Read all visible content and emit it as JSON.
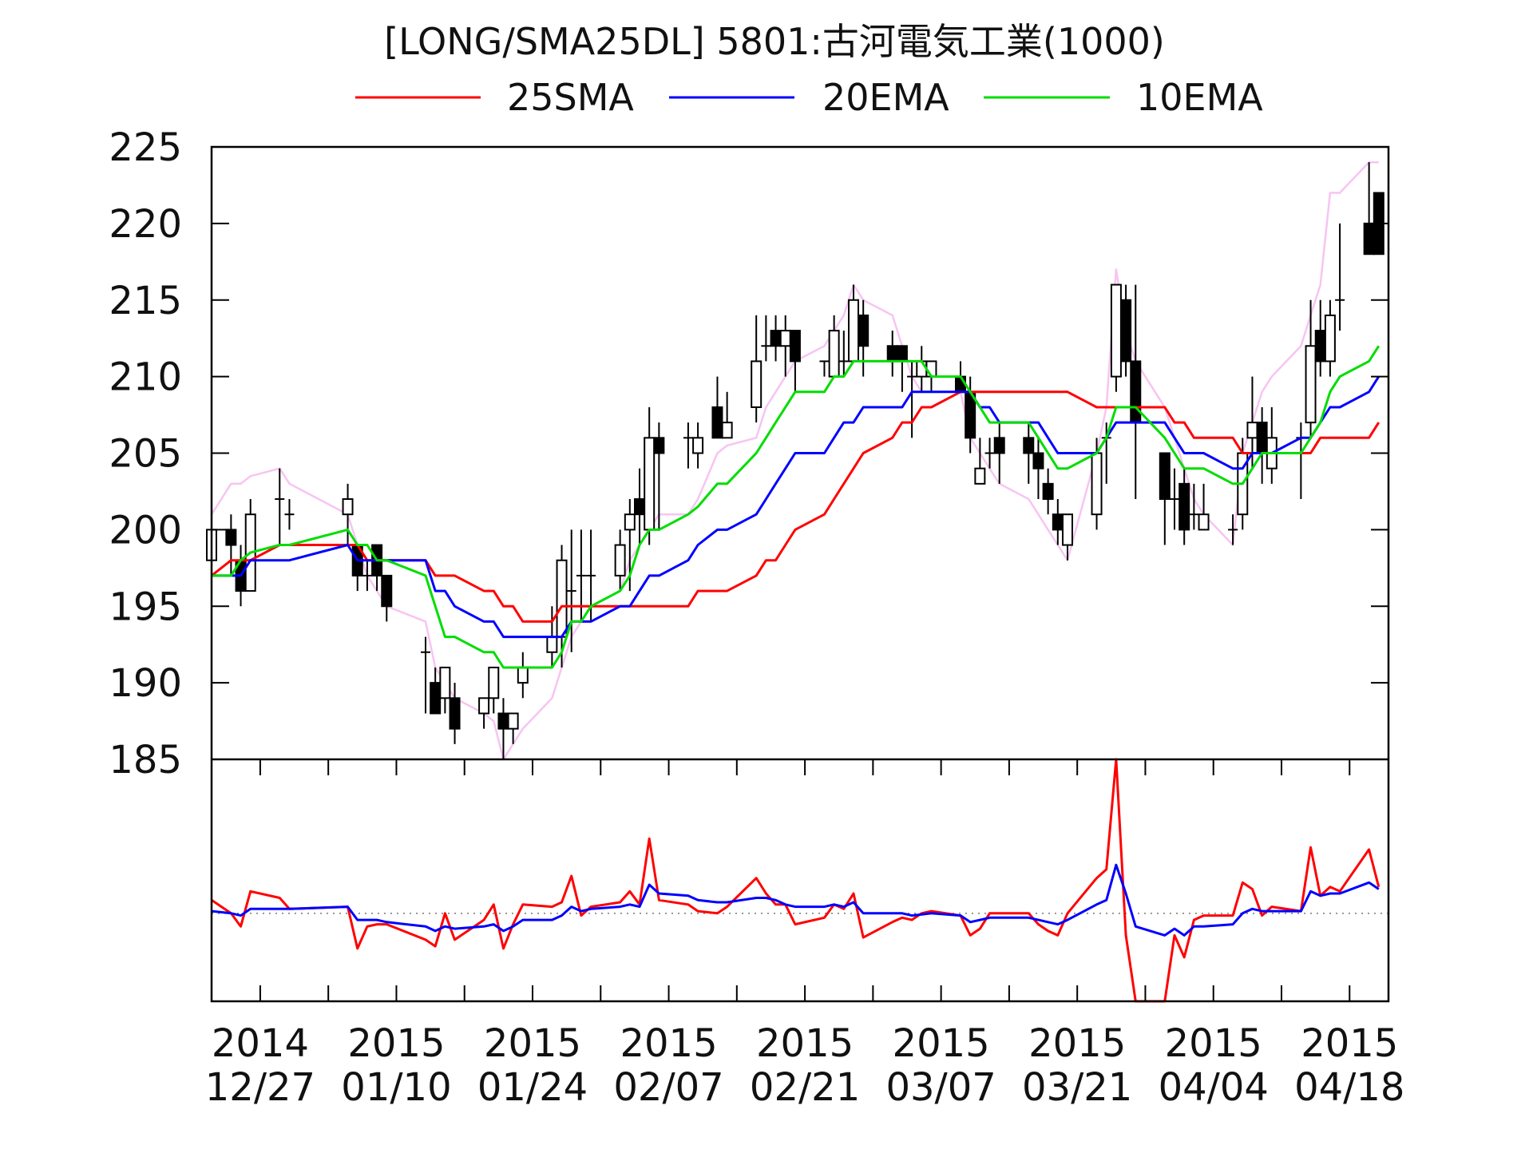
{
  "chart_data": [
    {
      "type": "candlestick",
      "title": "[LONG/SMA25DL] 5801:古河電気工業(1000)",
      "legend_placement": "top",
      "ylim": [
        185,
        225
      ],
      "yticks": [
        "185",
        "190",
        "195",
        "200",
        "205",
        "210",
        "215",
        "220",
        "225"
      ],
      "xlim": [
        "2014-12-22",
        "2015-04-22"
      ],
      "xticks": [
        {
          "date": "2014-12-27",
          "year": "2014",
          "md": "12/27"
        },
        {
          "date": "2015-01-10",
          "year": "2015",
          "md": "01/10"
        },
        {
          "date": "2015-01-24",
          "year": "2015",
          "md": "01/24"
        },
        {
          "date": "2015-02-07",
          "year": "2015",
          "md": "02/07"
        },
        {
          "date": "2015-02-21",
          "year": "2015",
          "md": "02/21"
        },
        {
          "date": "2015-03-07",
          "year": "2015",
          "md": "03/07"
        },
        {
          "date": "2015-03-21",
          "year": "2015",
          "md": "03/21"
        },
        {
          "date": "2015-04-04",
          "year": "2015",
          "md": "04/04"
        },
        {
          "date": "2015-04-18",
          "year": "2015",
          "md": "04/18"
        }
      ],
      "dates": [
        "2014-12-22",
        "2014-12-24",
        "2014-12-25",
        "2014-12-26",
        "2014-12-29",
        "2014-12-30",
        "2015-01-05",
        "2015-01-06",
        "2015-01-07",
        "2015-01-08",
        "2015-01-09",
        "2015-01-13",
        "2015-01-14",
        "2015-01-15",
        "2015-01-16",
        "2015-01-19",
        "2015-01-20",
        "2015-01-21",
        "2015-01-22",
        "2015-01-23",
        "2015-01-26",
        "2015-01-27",
        "2015-01-28",
        "2015-01-29",
        "2015-01-30",
        "2015-02-02",
        "2015-02-03",
        "2015-02-04",
        "2015-02-05",
        "2015-02-06",
        "2015-02-09",
        "2015-02-10",
        "2015-02-12",
        "2015-02-13",
        "2015-02-16",
        "2015-02-17",
        "2015-02-18",
        "2015-02-19",
        "2015-02-20",
        "2015-02-23",
        "2015-02-24",
        "2015-02-25",
        "2015-02-26",
        "2015-02-27",
        "2015-03-02",
        "2015-03-03",
        "2015-03-04",
        "2015-03-05",
        "2015-03-06",
        "2015-03-09",
        "2015-03-10",
        "2015-03-11",
        "2015-03-12",
        "2015-03-13",
        "2015-03-16",
        "2015-03-17",
        "2015-03-18",
        "2015-03-19",
        "2015-03-20",
        "2015-03-23",
        "2015-03-24",
        "2015-03-25",
        "2015-03-26",
        "2015-03-27",
        "2015-03-30",
        "2015-03-31",
        "2015-04-01",
        "2015-04-02",
        "2015-04-03",
        "2015-04-06",
        "2015-04-07",
        "2015-04-08",
        "2015-04-09",
        "2015-04-10",
        "2015-04-13",
        "2015-04-14",
        "2015-04-15",
        "2015-04-16",
        "2015-04-17",
        "2015-04-20",
        "2015-04-21"
      ],
      "ohlc": [
        [
          198,
          200,
          198,
          200
        ],
        [
          200,
          201,
          197,
          199
        ],
        [
          198,
          199,
          195,
          196
        ],
        [
          196,
          202,
          196,
          201
        ],
        [
          202,
          204,
          199,
          202
        ],
        [
          201,
          202,
          200,
          201
        ],
        [
          201,
          203,
          199,
          202
        ],
        [
          199,
          199,
          196,
          197
        ],
        [
          197,
          198,
          196,
          197
        ],
        [
          199,
          199,
          196,
          197
        ],
        [
          197,
          197,
          194,
          195
        ],
        [
          192,
          193,
          188,
          192
        ],
        [
          190,
          191,
          188,
          188
        ],
        [
          189,
          191,
          188,
          191
        ],
        [
          189,
          190,
          186,
          187
        ],
        [
          188,
          189,
          187,
          189
        ],
        [
          189,
          191,
          188,
          191
        ],
        [
          188,
          189,
          185,
          187
        ],
        [
          187,
          188,
          186,
          188
        ],
        [
          190,
          192,
          189,
          191
        ],
        [
          192,
          195,
          191,
          193
        ],
        [
          193,
          199,
          191,
          198
        ],
        [
          196,
          200,
          192,
          196
        ],
        [
          197,
          200,
          194,
          197
        ],
        [
          197,
          200,
          194,
          197
        ],
        [
          197,
          200,
          196,
          199
        ],
        [
          200,
          202,
          196,
          201
        ],
        [
          202,
          204,
          199,
          201
        ],
        [
          200,
          208,
          199,
          206
        ],
        [
          206,
          207,
          200,
          205
        ],
        [
          206,
          207,
          204,
          206
        ],
        [
          205,
          207,
          204,
          206
        ],
        [
          208,
          210,
          206,
          206
        ],
        [
          206,
          209,
          206,
          207
        ],
        [
          208,
          214,
          207,
          211
        ],
        [
          212,
          214,
          211,
          212
        ],
        [
          213,
          214,
          211,
          212
        ],
        [
          212,
          214,
          210,
          213
        ],
        [
          213,
          213,
          209,
          211
        ],
        [
          211,
          211,
          210,
          211
        ],
        [
          210,
          214,
          210,
          213
        ],
        [
          211,
          213,
          210,
          211
        ],
        [
          211,
          216,
          211,
          215
        ],
        [
          214,
          215,
          210,
          212
        ],
        [
          212,
          213,
          210,
          211
        ],
        [
          212,
          212,
          209,
          211
        ],
        [
          210,
          211,
          206,
          210
        ],
        [
          210,
          212,
          209,
          211
        ],
        [
          210,
          211,
          209,
          211
        ],
        [
          210,
          211,
          209,
          209
        ],
        [
          209,
          210,
          205,
          206
        ],
        [
          203,
          206,
          203,
          204
        ],
        [
          205,
          206,
          204,
          205
        ],
        [
          206,
          207,
          203,
          205
        ],
        [
          206,
          207,
          203,
          205
        ],
        [
          205,
          206,
          202,
          204
        ],
        [
          203,
          204,
          201,
          202
        ],
        [
          201,
          202,
          199,
          200
        ],
        [
          199,
          201,
          198,
          201
        ],
        [
          201,
          206,
          200,
          205
        ],
        [
          206,
          207,
          203,
          206
        ],
        [
          210,
          216,
          209,
          216
        ],
        [
          215,
          216,
          210,
          211
        ],
        [
          211,
          216,
          202,
          207
        ],
        [
          205,
          205,
          199,
          202
        ],
        [
          202,
          204,
          200,
          202
        ],
        [
          203,
          204,
          199,
          200
        ],
        [
          201,
          203,
          200,
          201
        ],
        [
          200,
          203,
          200,
          201
        ],
        [
          200,
          201,
          199,
          200
        ],
        [
          201,
          206,
          200,
          205
        ],
        [
          206,
          210,
          204,
          207
        ],
        [
          207,
          208,
          203,
          205
        ],
        [
          204,
          208,
          203,
          206
        ],
        [
          206,
          207,
          202,
          206
        ],
        [
          207,
          215,
          206,
          212
        ],
        [
          213,
          215,
          210,
          211
        ],
        [
          211,
          215,
          210,
          214
        ],
        [
          215,
          220,
          213,
          215
        ],
        [
          220,
          224,
          218,
          218
        ],
        [
          222,
          222,
          218,
          218
        ]
      ],
      "series": [
        {
          "name": "25SMA",
          "color": "#ff0000",
          "values": [
            197,
            198,
            198,
            198,
            199,
            199,
            199,
            199,
            198,
            198,
            198,
            198,
            197,
            197,
            197,
            196,
            196,
            195,
            195,
            194,
            194,
            195,
            195,
            195,
            195,
            195,
            195,
            195,
            195,
            195,
            195,
            196,
            196,
            196,
            197,
            198,
            198,
            199,
            200,
            201,
            202,
            203,
            204,
            205,
            206,
            207,
            207,
            208,
            208,
            209,
            209,
            209,
            209,
            209,
            209,
            209,
            209,
            209,
            209,
            208,
            208,
            208,
            208,
            208,
            208,
            207,
            207,
            206,
            206,
            206,
            205,
            205,
            205,
            205,
            205,
            205,
            206,
            206,
            206,
            206,
            207
          ]
        },
        {
          "name": "20EMA",
          "color": "#0000ff",
          "values": [
            197,
            197,
            197,
            198,
            198,
            198,
            199,
            198,
            198,
            198,
            198,
            198,
            196,
            196,
            195,
            194,
            194,
            193,
            193,
            193,
            193,
            193,
            194,
            194,
            194,
            195,
            195,
            196,
            197,
            197,
            198,
            199,
            200,
            200,
            201,
            202,
            203,
            204,
            205,
            205,
            206,
            207,
            207,
            208,
            208,
            208,
            209,
            209,
            209,
            209,
            209,
            208,
            208,
            207,
            207,
            207,
            206,
            205,
            205,
            205,
            206,
            207,
            207,
            207,
            207,
            206,
            205,
            205,
            205,
            204,
            204,
            205,
            205,
            205,
            206,
            206,
            207,
            208,
            208,
            209,
            210
          ]
        },
        {
          "name": "10EMA",
          "color": "#00dd00",
          "values": [
            197,
            197,
            198,
            198.5,
            199,
            199,
            200,
            199,
            199,
            198,
            198,
            197,
            195,
            193,
            193,
            192,
            192,
            191,
            191,
            191,
            191,
            192,
            194,
            194,
            195,
            196,
            197,
            199,
            200,
            200,
            201,
            201.5,
            203,
            203,
            205,
            206,
            207,
            208,
            209,
            209,
            210,
            210,
            211,
            211,
            211,
            211,
            211,
            211,
            210,
            210,
            209,
            208,
            207,
            207,
            207,
            206,
            205,
            204,
            204,
            205,
            206,
            208,
            208,
            208,
            206,
            205,
            204,
            204,
            204,
            203,
            203,
            204,
            205,
            205,
            205,
            206,
            207,
            209,
            210,
            211,
            212
          ]
        },
        {
          "color": "#f7c4f2",
          "values": [
            201,
            203,
            203,
            203.5,
            204,
            203,
            201,
            199,
            197,
            196,
            195,
            194,
            191,
            190,
            189,
            188,
            187.5,
            185,
            186,
            187,
            189,
            191,
            193,
            194,
            195,
            196,
            198,
            199,
            200,
            201,
            201,
            202,
            205,
            205.5,
            206,
            208,
            209,
            210,
            211,
            212,
            213,
            214,
            216,
            215,
            214,
            212,
            210,
            209,
            209,
            209,
            206,
            205,
            204,
            203,
            202,
            201,
            200,
            199,
            198,
            205,
            208,
            217,
            213,
            211,
            208,
            206,
            204,
            202,
            201,
            199,
            205,
            207,
            209,
            210,
            212,
            214,
            216,
            222,
            222,
            224,
            224
          ]
        }
      ]
    },
    {
      "type": "line",
      "ylim": [
        -4,
        7
      ],
      "baseline": 0,
      "series": [
        {
          "color": "#ff0000",
          "values": [
            0.6,
            0,
            -0.6,
            1.0,
            0.7,
            0.2,
            0.3,
            -1.6,
            -0.6,
            -0.5,
            -0.5,
            -1.2,
            -1.5,
            0,
            -1.2,
            -0.3,
            0.4,
            -1.6,
            -0.5,
            0.4,
            0.3,
            0.5,
            1.7,
            -0.1,
            0.3,
            0.5,
            1.0,
            0.4,
            3.4,
            0.6,
            0.4,
            0.1,
            0,
            0.3,
            1.6,
            0.9,
            0.4,
            0.4,
            -0.5,
            -0.2,
            0.4,
            0.2,
            0.9,
            -1.1,
            -0.4,
            -0.2,
            -0.3,
            0,
            0.1,
            -0.1,
            -1.0,
            -0.7,
            0,
            0,
            0,
            -0.5,
            -0.8,
            -1.0,
            0,
            1.6,
            2.0,
            7.0,
            -1.0,
            -4.0,
            -4.0,
            -1.0,
            -2.0,
            -0.3,
            -0.1,
            -0.1,
            1.4,
            1.1,
            -0.1,
            0.3,
            0.1,
            3.0,
            0.8,
            1.2,
            1.0,
            2.9,
            1.2
          ]
        },
        {
          "color": "#0000ff",
          "values": [
            0.1,
            0,
            -0.1,
            0.2,
            0.2,
            0.2,
            0.3,
            -0.3,
            -0.3,
            -0.3,
            -0.4,
            -0.6,
            -0.8,
            -0.6,
            -0.7,
            -0.6,
            -0.5,
            -0.8,
            -0.6,
            -0.3,
            -0.3,
            -0.1,
            0.3,
            0.1,
            0.2,
            0.3,
            0.4,
            0.3,
            1.3,
            0.9,
            0.8,
            0.6,
            0.5,
            0.5,
            0.7,
            0.7,
            0.6,
            0.4,
            0.3,
            0.3,
            0.4,
            0.3,
            0.5,
            0,
            0,
            0,
            -0.1,
            -0.05,
            0,
            -0.1,
            -0.4,
            -0.3,
            -0.2,
            -0.2,
            -0.2,
            -0.3,
            -0.4,
            -0.5,
            -0.3,
            0.4,
            0.6,
            2.2,
            0.9,
            -0.6,
            -1.0,
            -0.7,
            -1.0,
            -0.6,
            -0.6,
            -0.5,
            0,
            0.2,
            0.1,
            0.1,
            0.1,
            1.0,
            0.8,
            0.9,
            0.9,
            1.4,
            1.1
          ]
        }
      ]
    }
  ]
}
